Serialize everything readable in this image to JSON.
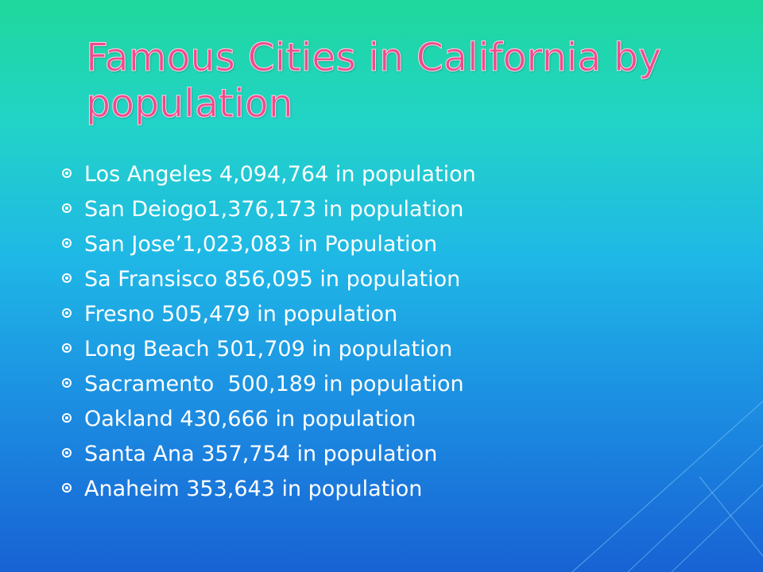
{
  "title": "Famous Cities in California by population",
  "bullets": [
    "Los Angeles 4,094,764 in population",
    "San Deiogo1,376,173 in population",
    "San Jose’1,023,083 in Population",
    "Sa Fransisco 856,095 in population",
    "Fresno 505,479 in population",
    "Long Beach 501,709 in population",
    "Sacramento  500,189 in population",
    "Oakland 430,666 in population",
    "Santa Ana 357,754 in population",
    "Anaheim 353,643 in population"
  ]
}
